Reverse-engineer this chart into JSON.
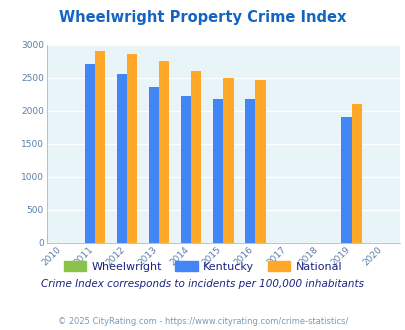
{
  "title": "Wheelwright Property Crime Index",
  "all_years": [
    2010,
    2011,
    2012,
    2013,
    2014,
    2015,
    2016,
    2017,
    2018,
    2019,
    2020
  ],
  "years_with_data": [
    2011,
    2012,
    2013,
    2014,
    2015,
    2016,
    2019
  ],
  "kentucky": [
    2700,
    2550,
    2350,
    2220,
    2170,
    2170,
    1900
  ],
  "national": [
    2900,
    2850,
    2750,
    2600,
    2500,
    2470,
    2100
  ],
  "bar_width": 0.32,
  "colors": {
    "wheelwright": "#8bc34a",
    "kentucky": "#4285f4",
    "national": "#ffa726"
  },
  "ylim": [
    0,
    3000
  ],
  "yticks": [
    0,
    500,
    1000,
    1500,
    2000,
    2500,
    3000
  ],
  "bg_color": "#e8f4f8",
  "grid_color": "#ffffff",
  "title_color": "#1565c0",
  "tick_color": "#5b7fa6",
  "subtitle": "Crime Index corresponds to incidents per 100,000 inhabitants",
  "footer": "© 2025 CityRating.com - https://www.cityrating.com/crime-statistics/",
  "subtitle_color": "#1a237e",
  "footer_color": "#7a9ab8"
}
